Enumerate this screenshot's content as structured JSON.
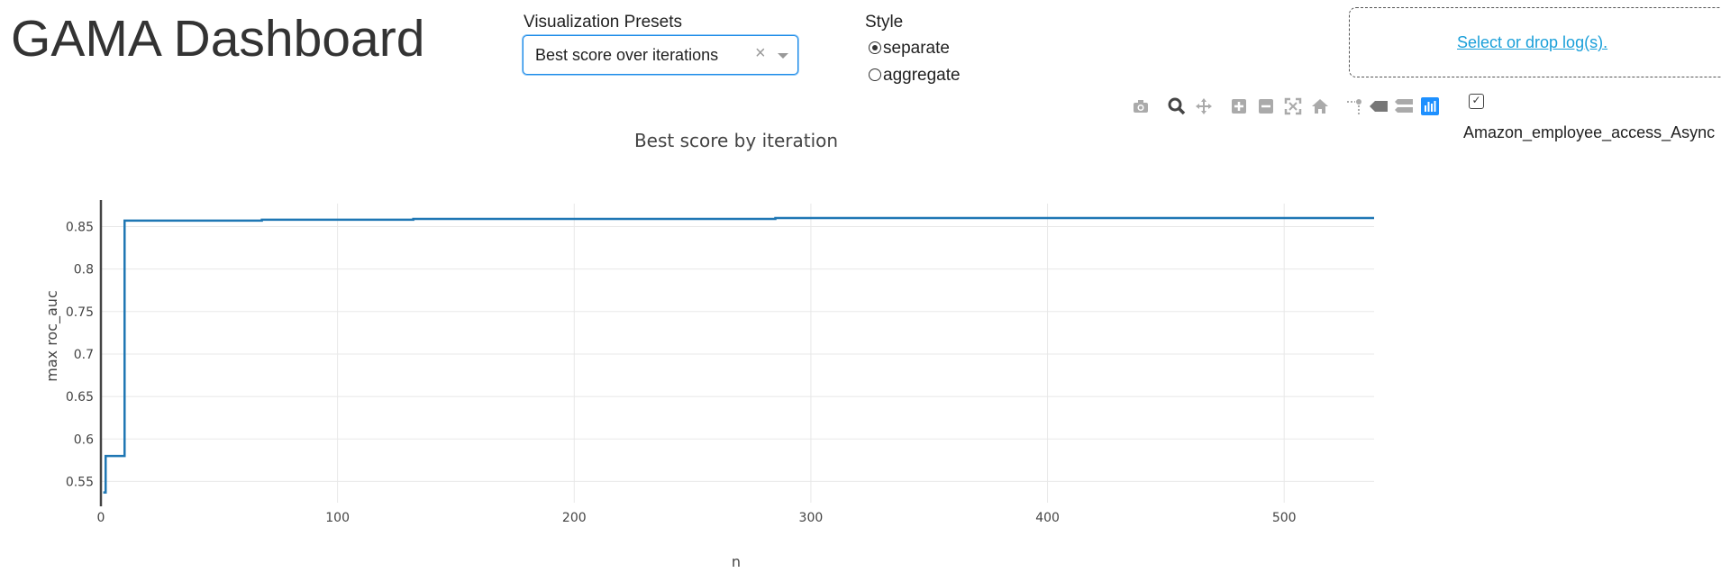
{
  "app": {
    "title": "GAMA Dashboard"
  },
  "presets": {
    "label": "Visualization Presets",
    "selected": "Best score over iterations",
    "clear_glyph": "×"
  },
  "style": {
    "label": "Style",
    "options": [
      {
        "label": "separate",
        "checked": true
      },
      {
        "label": "aggregate",
        "checked": false
      }
    ]
  },
  "upload": {
    "link_text": "Select or drop log(s)."
  },
  "modebar": {
    "icons": [
      "camera-icon",
      "zoom-icon",
      "pan-icon",
      "zoom-in-icon",
      "zoom-out-icon",
      "autoscale-icon",
      "reset-axes-icon",
      "spike-lines-icon",
      "hover-closest-icon",
      "hover-compare-icon",
      "plotly-logo-icon"
    ]
  },
  "legend": {
    "checkbox_checked": true,
    "series_label": "Amazon_employee_access_Async"
  },
  "colors": {
    "series": "#1f77b4",
    "upload_link": "#1a9fd9",
    "select_border": "#1d8be8"
  },
  "chart_data": {
    "type": "line",
    "title": "Best score by iteration",
    "xlabel": "n",
    "ylabel": "max roc_auc",
    "xlim": [
      0,
      538
    ],
    "ylim": [
      0.525,
      0.877
    ],
    "xticks": [
      0,
      100,
      200,
      300,
      400,
      500
    ],
    "yticks": [
      0.55,
      0.6,
      0.65,
      0.7,
      0.75,
      0.8,
      0.85
    ],
    "ytick_labels": [
      "0.55",
      "0.6",
      "0.65",
      "0.7",
      "0.75",
      "0.8",
      "0.85"
    ],
    "line_shape": "step",
    "grid": true,
    "series": [
      {
        "name": "Amazon_employee_access_Async",
        "x": [
          1,
          2,
          8,
          10,
          68,
          132,
          285,
          538
        ],
        "y": [
          0.537,
          0.58,
          0.58,
          0.857,
          0.858,
          0.859,
          0.86,
          0.86
        ]
      }
    ]
  }
}
